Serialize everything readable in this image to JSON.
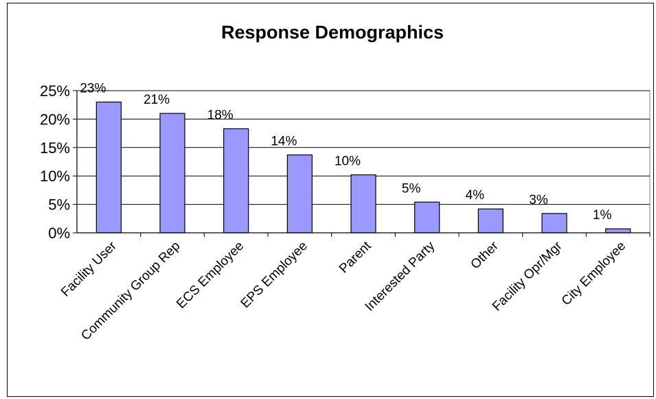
{
  "chart_data": {
    "type": "bar",
    "title": "Response Demographics",
    "xlabel": "",
    "ylabel": "",
    "categories": [
      "Facility User",
      "Community Group Rep",
      "ECS Employee",
      "EPS Employee",
      "Parent",
      "Interested Party",
      "Other",
      "Facility  Opr/Mgr",
      "City Employee"
    ],
    "values": [
      23,
      21,
      18,
      14,
      10,
      5,
      4,
      3,
      1
    ],
    "bar_values": [
      23,
      21,
      18.3,
      13.7,
      10.2,
      5.4,
      4.2,
      3.4,
      0.7
    ],
    "value_labels": [
      "23%",
      "21%",
      "18%",
      "14%",
      "10%",
      "5%",
      "4%",
      "3%",
      "1%"
    ],
    "yticks": [
      "0%",
      "5%",
      "10%",
      "15%",
      "20%",
      "25%"
    ],
    "ylim": [
      0,
      25
    ],
    "grid": true,
    "legend": "none",
    "bar_color": "#9999ff",
    "plot_background": "#ffffff"
  }
}
